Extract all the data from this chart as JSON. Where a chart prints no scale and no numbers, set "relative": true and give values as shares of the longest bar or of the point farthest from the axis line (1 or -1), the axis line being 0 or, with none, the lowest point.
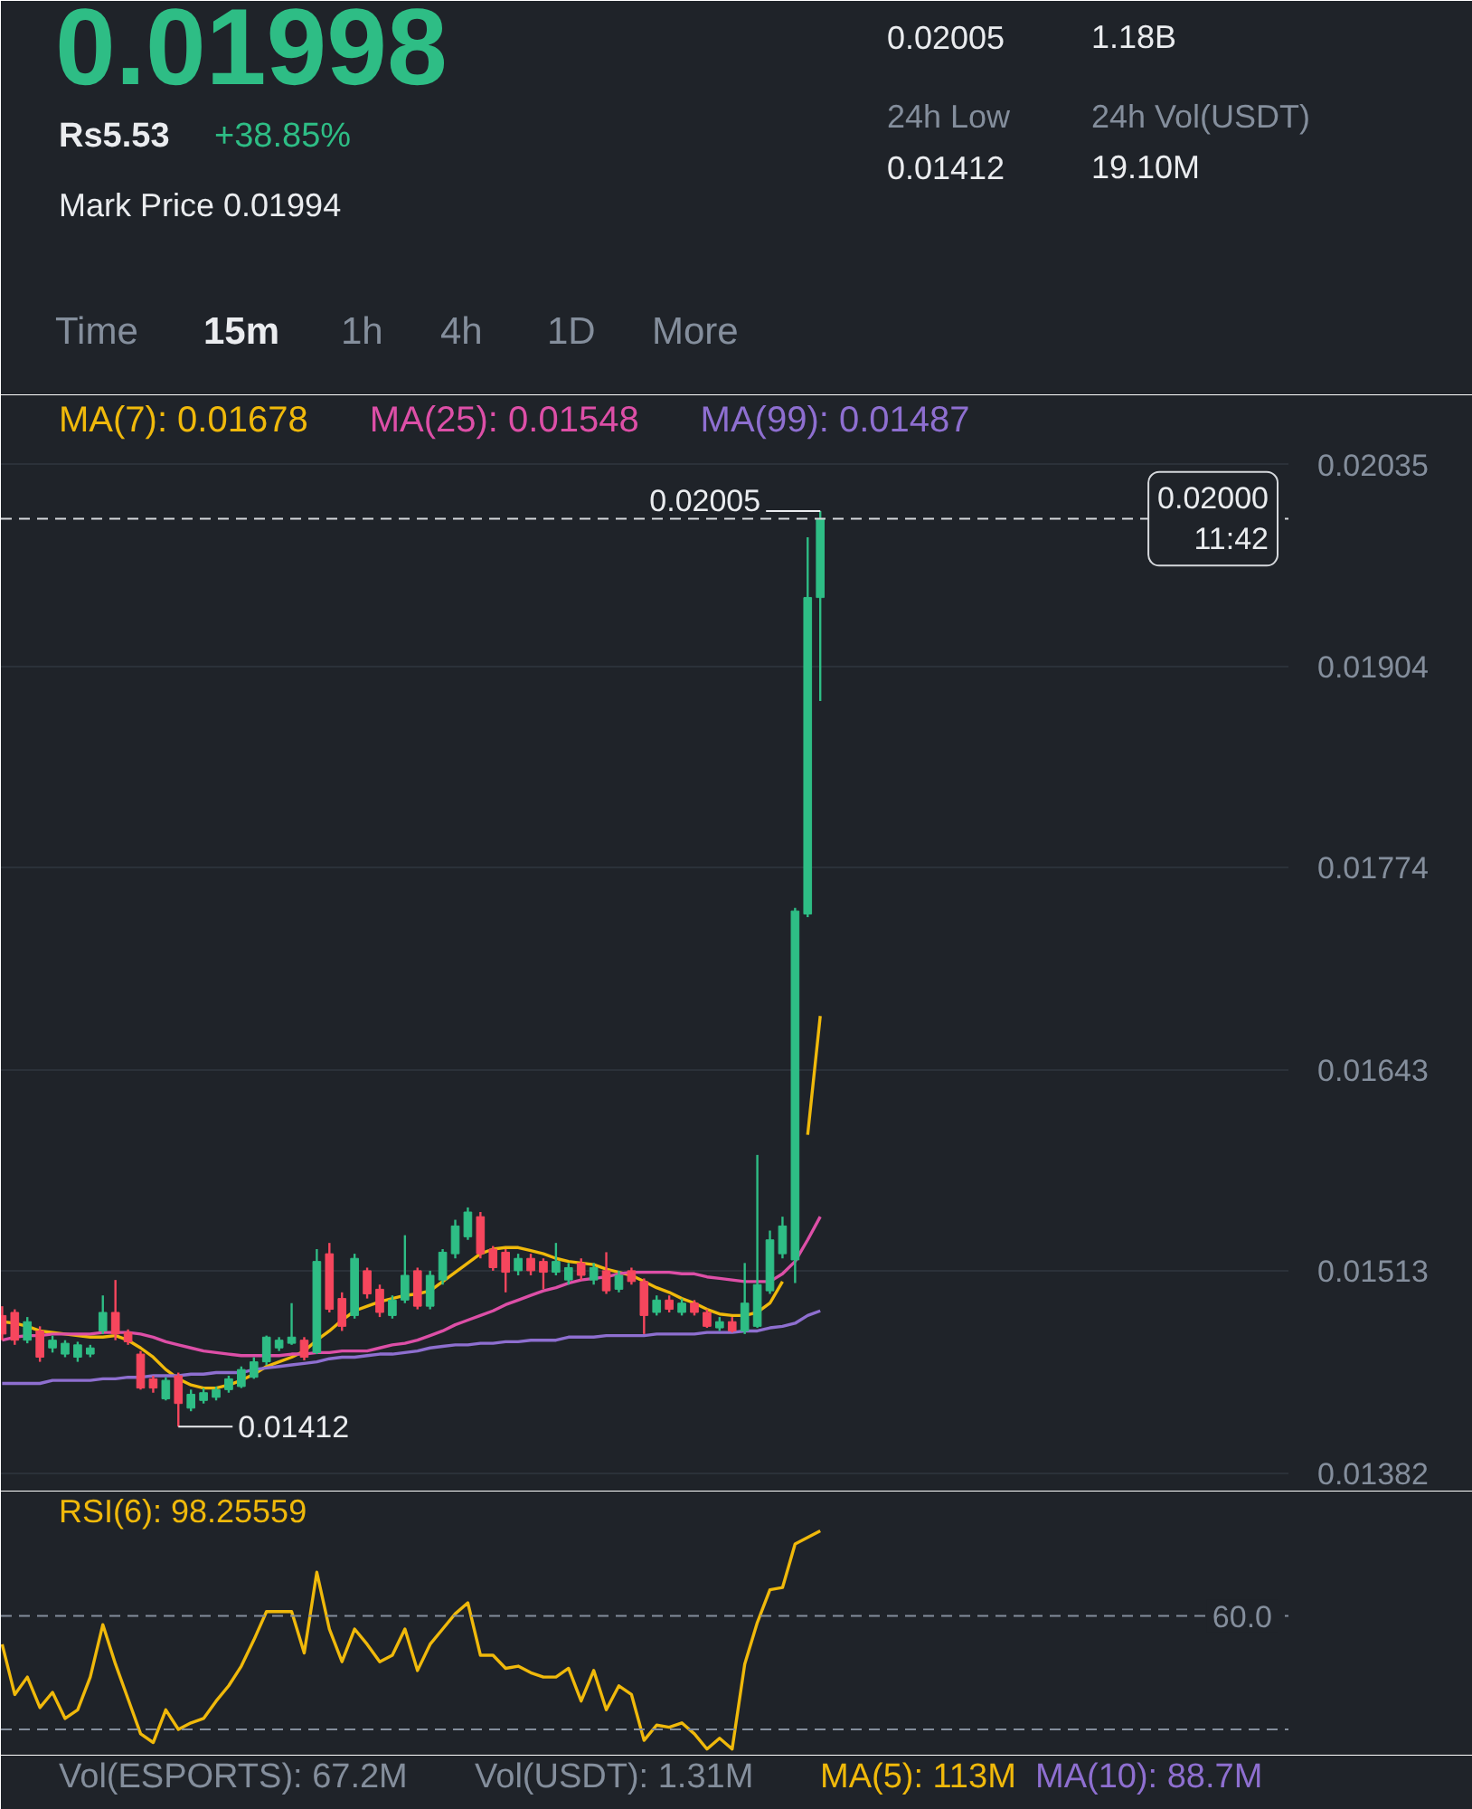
{
  "chart_data": [
    {
      "type": "other",
      "title": "0.01998",
      "color": "#2ebd85",
      "annotations": [
        "Rs5.53",
        "+38.85%",
        "Mark Price 0.01994",
        "0.02005",
        "1.18B",
        "24h Low",
        "0.01412",
        "24h Vol(USDT)",
        "19.10M",
        "Time",
        "15m",
        "1h",
        "4h",
        "1D",
        "More"
      ],
      "colors": [
        "#eaecef",
        "#2ebd85",
        "#eaecef",
        "#eaecef",
        "#eaecef",
        "#848e9c",
        "#eaecef",
        "#848e9c",
        "#eaecef",
        "#848e9c",
        "#eaecef",
        "#848e9c",
        "#848e9c",
        "#848e9c",
        "#848e9c"
      ]
    },
    {
      "type": "candlestick",
      "categories": [
        null,
        null,
        null,
        null,
        null,
        null,
        null,
        null,
        null,
        null,
        null,
        null,
        null,
        null,
        null,
        null,
        null,
        null,
        null,
        null,
        null,
        null,
        null,
        null,
        null,
        null,
        null,
        null,
        null,
        null,
        null,
        null,
        null,
        null,
        null,
        null,
        null,
        null,
        null,
        null,
        null,
        null,
        null,
        null,
        null,
        null,
        null,
        null,
        null,
        null,
        null,
        null,
        null,
        null,
        null,
        null,
        null,
        null,
        null,
        null,
        null,
        null,
        null,
        null,
        null,
        null
      ],
      "ohlc": [
        [
          0.01484,
          0.0149,
          0.01468,
          0.01472
        ],
        [
          0.01486,
          0.01488,
          0.01465,
          0.01468
        ],
        [
          0.01468,
          0.01483,
          0.01466,
          0.0148
        ],
        [
          0.01474,
          0.01477,
          0.01454,
          0.01457
        ],
        [
          0.01463,
          0.01471,
          0.0146,
          0.01468
        ],
        [
          0.01459,
          0.01468,
          0.01457,
          0.01466
        ],
        [
          0.01457,
          0.01467,
          0.01454,
          0.01465
        ],
        [
          0.01459,
          0.01465,
          0.01457,
          0.01463
        ],
        [
          0.01474,
          0.01497,
          0.01472,
          0.01486
        ],
        [
          0.01486,
          0.01507,
          0.01468,
          0.01472
        ],
        [
          0.01473,
          0.01475,
          0.01465,
          0.01467
        ],
        [
          0.01459,
          0.01461,
          0.01436,
          0.01437
        ],
        [
          0.01443,
          0.01445,
          0.01434,
          0.01437
        ],
        [
          0.0143,
          0.01444,
          0.01429,
          0.01442
        ],
        [
          0.01445,
          0.01447,
          0.01412,
          0.01427
        ],
        [
          0.01424,
          0.01436,
          0.01422,
          0.01433
        ],
        [
          0.01429,
          0.01437,
          0.01427,
          0.01434
        ],
        [
          0.01431,
          0.01438,
          0.01429,
          0.01436
        ],
        [
          0.01436,
          0.01445,
          0.01434,
          0.01443
        ],
        [
          0.01438,
          0.01451,
          0.01437,
          0.01449
        ],
        [
          0.01444,
          0.01457,
          0.01443,
          0.01454
        ],
        [
          0.01454,
          0.01471,
          0.01452,
          0.0147
        ],
        [
          0.01463,
          0.0147,
          0.01461,
          0.01468
        ],
        [
          0.01466,
          0.01492,
          0.01465,
          0.0147
        ],
        [
          0.01468,
          0.0147,
          0.01455,
          0.01457
        ],
        [
          0.0146,
          0.01527,
          0.01459,
          0.01519
        ],
        [
          0.01524,
          0.01531,
          0.01486,
          0.01488
        ],
        [
          0.01495,
          0.01499,
          0.01474,
          0.01477
        ],
        [
          0.01484,
          0.01524,
          0.01482,
          0.01521
        ],
        [
          0.01513,
          0.01515,
          0.01495,
          0.01498
        ],
        [
          0.01501,
          0.01504,
          0.01483,
          0.01486
        ],
        [
          0.01484,
          0.01497,
          0.01482,
          0.01494
        ],
        [
          0.01494,
          0.01536,
          0.01492,
          0.0151
        ],
        [
          0.01513,
          0.01515,
          0.01488,
          0.0149
        ],
        [
          0.0149,
          0.01513,
          0.01488,
          0.0151
        ],
        [
          0.01507,
          0.01527,
          0.01504,
          0.01525
        ],
        [
          0.01524,
          0.01546,
          0.01521,
          0.01542
        ],
        [
          0.01535,
          0.01554,
          0.01533,
          0.01551
        ],
        [
          0.01548,
          0.01551,
          0.01521,
          0.01524
        ],
        [
          0.01527,
          0.01529,
          0.01513,
          0.01515
        ],
        [
          0.01525,
          0.01527,
          0.01499,
          0.01512
        ],
        [
          0.01513,
          0.01524,
          0.0151,
          0.01521
        ],
        [
          0.01521,
          0.01524,
          0.0151,
          0.01513
        ],
        [
          0.01519,
          0.01521,
          0.01501,
          0.01512
        ],
        [
          0.01512,
          0.01531,
          0.0151,
          0.01519
        ],
        [
          0.01507,
          0.01518,
          0.01504,
          0.01515
        ],
        [
          0.01518,
          0.01521,
          0.01507,
          0.0151
        ],
        [
          0.01507,
          0.01518,
          0.01504,
          0.01515
        ],
        [
          0.01513,
          0.01525,
          0.01498,
          0.015
        ],
        [
          0.01501,
          0.01513,
          0.01499,
          0.0151
        ],
        [
          0.01513,
          0.01515,
          0.01504,
          0.01506
        ],
        [
          0.01506,
          0.01508,
          0.01472,
          0.01484
        ],
        [
          0.01486,
          0.01497,
          0.01484,
          0.01494
        ],
        [
          0.01494,
          0.01497,
          0.01486,
          0.01488
        ],
        [
          0.01486,
          0.01495,
          0.01484,
          0.01492
        ],
        [
          0.01492,
          0.01494,
          0.01484,
          0.01486
        ],
        [
          0.01486,
          0.01488,
          0.01476,
          0.01477
        ],
        [
          0.01476,
          0.01483,
          0.01474,
          0.0148
        ],
        [
          0.0148,
          0.01483,
          0.01473,
          0.01474
        ],
        [
          0.01474,
          0.01518,
          0.01472,
          0.01492
        ],
        [
          0.01477,
          0.01588,
          0.01476,
          0.01504
        ],
        [
          0.015,
          0.01539,
          0.01498,
          0.01533
        ],
        [
          0.01524,
          0.01548,
          0.01521,
          0.01542
        ],
        [
          0.0152,
          0.01748,
          0.01505,
          0.01746
        ],
        [
          0.01744,
          0.01988,
          0.01742,
          0.01949
        ],
        [
          0.01949,
          0.02005,
          0.01882,
          0.02
        ]
      ],
      "colors": [
        "#f6465d",
        "#f6465d",
        "#2ebd85",
        "#f6465d",
        "#2ebd85",
        "#2ebd85",
        "#2ebd85",
        "#2ebd85",
        "#2ebd85",
        "#f6465d",
        "#f6465d",
        "#f6465d",
        "#f6465d",
        "#2ebd85",
        "#f6465d",
        "#2ebd85",
        "#2ebd85",
        "#2ebd85",
        "#2ebd85",
        "#2ebd85",
        "#2ebd85",
        "#2ebd85",
        "#2ebd85",
        "#2ebd85",
        "#f6465d",
        "#2ebd85",
        "#f6465d",
        "#f6465d",
        "#2ebd85",
        "#f6465d",
        "#f6465d",
        "#2ebd85",
        "#2ebd85",
        "#f6465d",
        "#2ebd85",
        "#2ebd85",
        "#2ebd85",
        "#2ebd85",
        "#f6465d",
        "#f6465d",
        "#f6465d",
        "#2ebd85",
        "#f6465d",
        "#f6465d",
        "#2ebd85",
        "#2ebd85",
        "#f6465d",
        "#2ebd85",
        "#f6465d",
        "#2ebd85",
        "#f6465d",
        "#f6465d",
        "#2ebd85",
        "#f6465d",
        "#2ebd85",
        "#f6465d",
        "#f6465d",
        "#2ebd85",
        "#f6465d",
        "#2ebd85",
        "#2ebd85",
        "#2ebd85",
        "#2ebd85",
        "#2ebd85",
        "#2ebd85",
        "#2ebd85"
      ],
      "series": [
        {
          "name": "MA(7): 0.01678",
          "type": "line",
          "color": "#f0b90b",
          "values": [
            0.0148,
            0.01479,
            0.01477,
            0.01474,
            0.01473,
            0.01472,
            0.01471,
            0.0147,
            0.0147,
            0.01471,
            0.01468,
            0.01463,
            0.01457,
            0.01449,
            0.01443,
            0.01439,
            0.01437,
            0.01437,
            0.01439,
            0.01442,
            0.01446,
            0.01451,
            0.01454,
            0.01457,
            0.01461,
            0.01468,
            0.01474,
            0.01481,
            0.01487,
            0.0149,
            0.01493,
            0.01495,
            0.01497,
            0.01498,
            0.015,
            0.01506,
            0.01512,
            0.01518,
            0.01524,
            0.01527,
            0.01528,
            0.01528,
            0.01526,
            0.01524,
            0.01521,
            0.01519,
            0.01518,
            0.01517,
            0.01514,
            0.01512,
            0.0151,
            0.01506,
            0.01502,
            0.01499,
            0.01495,
            0.01492,
            0.01488,
            0.01485,
            0.01484,
            0.01484,
            0.01486,
            0.01492,
            0.01506,
            null,
            0.01601,
            0.01678
          ]
        },
        {
          "name": "MA(25): 0.01548",
          "type": "line",
          "color": "#dd4fa7",
          "values": [
            0.01468,
            0.0147,
            0.01471,
            0.01471,
            0.01472,
            0.01472,
            0.01472,
            0.01472,
            0.01473,
            0.01473,
            0.01473,
            0.01472,
            0.0147,
            0.01467,
            0.01465,
            0.01463,
            0.01461,
            0.0146,
            0.01459,
            0.01458,
            0.01458,
            0.01458,
            0.01458,
            0.01459,
            0.01459,
            0.0146,
            0.0146,
            0.01461,
            0.01461,
            0.01461,
            0.01463,
            0.01465,
            0.01466,
            0.01468,
            0.01471,
            0.01474,
            0.01478,
            0.01481,
            0.01484,
            0.01487,
            0.01491,
            0.01494,
            0.01497,
            0.015,
            0.01502,
            0.01505,
            0.01507,
            0.01508,
            0.01509,
            0.01511,
            0.01512,
            0.01512,
            0.01512,
            0.01512,
            0.01511,
            0.01511,
            0.01509,
            0.01508,
            0.01507,
            0.01506,
            0.01506,
            0.01506,
            0.01511,
            0.01519,
            0.01533,
            0.01548
          ]
        },
        {
          "name": "MA(99): 0.01487",
          "type": "line",
          "color": "#8e6fd0",
          "values": [
            0.0144,
            0.0144,
            0.0144,
            0.0144,
            0.01442,
            0.01442,
            0.01442,
            0.01442,
            0.01443,
            0.01443,
            0.01444,
            0.01444,
            0.01445,
            0.01445,
            0.01445,
            0.01446,
            0.01446,
            0.01447,
            0.01447,
            0.01447,
            0.01449,
            0.0145,
            0.01451,
            0.01452,
            0.01453,
            0.01454,
            0.01456,
            0.01457,
            0.01457,
            0.01458,
            0.01459,
            0.01459,
            0.0146,
            0.01461,
            0.01463,
            0.01464,
            0.01465,
            0.01465,
            0.01466,
            0.01466,
            0.01467,
            0.01467,
            0.01468,
            0.01468,
            0.01468,
            0.0147,
            0.0147,
            0.0147,
            0.01471,
            0.01471,
            0.01471,
            0.01471,
            0.01472,
            0.01472,
            0.01472,
            0.01472,
            0.01473,
            0.01473,
            0.01473,
            0.01474,
            0.01474,
            0.01476,
            0.01477,
            0.01479,
            0.01484,
            0.01487
          ]
        }
      ],
      "ylim": [
        0.0137,
        0.0208
      ],
      "yticks": [
        0.02035,
        0.01904,
        0.01774,
        0.01643,
        0.01513,
        0.01382
      ],
      "grid": "y",
      "legend": "top",
      "tick_labels": "y",
      "ref_lines": [
        {
          "axis": "y",
          "value": 0.02,
          "label": "0.02000\n11:42",
          "line_style": "dashed",
          "color": "#d5d8dc"
        }
      ],
      "annotations": [
        "0.02005",
        "0.01412"
      ]
    },
    {
      "type": "line",
      "title": "RSI(6): 98.25559",
      "relative": true,
      "categories": [
        null,
        null,
        null,
        null,
        null,
        null,
        null,
        null,
        null,
        null,
        null,
        null,
        null,
        null,
        null,
        null,
        null,
        null,
        null,
        null,
        null,
        null,
        null,
        null,
        null,
        null,
        null,
        null,
        null,
        null,
        null,
        null,
        null,
        null,
        null,
        null,
        null,
        null,
        null,
        null,
        null,
        null,
        null,
        null,
        null,
        null,
        null,
        null,
        null,
        null,
        null,
        null,
        null,
        null,
        null,
        null,
        null,
        null,
        null,
        null,
        null,
        null,
        null,
        null,
        null,
        null
      ],
      "series": [
        {
          "color": "#f0b90b",
          "values": [
            0.48,
            0.25,
            0.33,
            0.19,
            0.26,
            0.14,
            0.18,
            0.33,
            0.57,
            0.39,
            0.23,
            0.07,
            0.03,
            0.18,
            0.09,
            0.12,
            0.14,
            0.22,
            0.29,
            0.38,
            0.5,
            0.63,
            0.63,
            0.63,
            0.44,
            0.81,
            0.55,
            0.4,
            0.55,
            0.48,
            0.4,
            0.43,
            0.55,
            0.36,
            0.48,
            0.55,
            0.62,
            0.67,
            0.43,
            0.43,
            0.37,
            0.38,
            0.35,
            0.33,
            0.33,
            0.37,
            0.22,
            0.36,
            0.18,
            0.29,
            0.25,
            0.04,
            0.11,
            0.1,
            0.12,
            0.07,
            0,
            0.05,
            0,
            0.39,
            0.58,
            0.73,
            0.74,
            0.94,
            0.97,
            1
          ]
        }
      ],
      "tick_labels": false,
      "ref_lines": [
        {
          "axis": "y",
          "value": 0.61,
          "line_style": "dashed",
          "color": "#848e9c"
        },
        {
          "axis": "y",
          "value": 0.09,
          "line_style": "dashed",
          "color": "#848e9c"
        }
      ],
      "annotations": [
        "60.0"
      ]
    },
    {
      "type": "other",
      "annotations": [
        "Vol(ESPORTS): 67.2M",
        "Vol(USDT): 1.31M",
        "MA(5): 113M",
        "MA(10): 88.7M"
      ],
      "colors": [
        "#848e9c",
        "#848e9c",
        "#f0b90b",
        "#8e6fd0"
      ]
    }
  ]
}
